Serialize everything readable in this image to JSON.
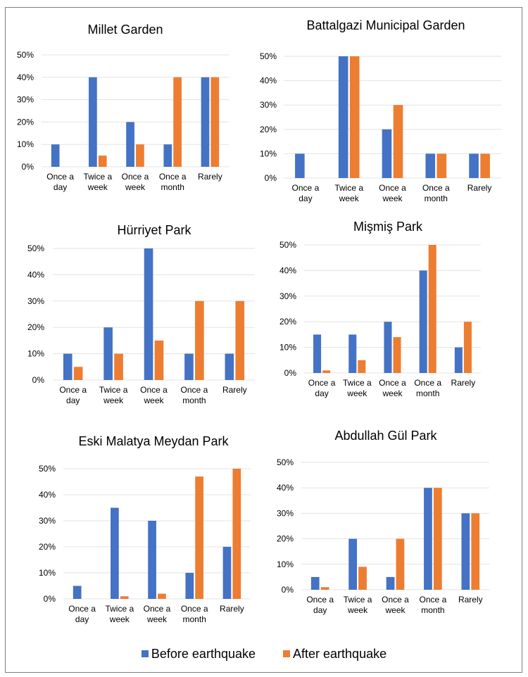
{
  "colors": {
    "before": "#4472c4",
    "after": "#ed7d31"
  },
  "legend": [
    {
      "label": "Before earthquake",
      "series": "before"
    },
    {
      "label": "After earthquake",
      "series": "after"
    }
  ],
  "chart_data": [
    {
      "type": "bar",
      "title": "Millet Garden",
      "categories": [
        "Once a day",
        "Twice a week",
        "Once a week",
        "Once a month",
        "Rarely"
      ],
      "series": [
        {
          "name": "Before earthquake",
          "values": [
            10,
            40,
            20,
            10,
            40
          ]
        },
        {
          "name": "After earthquake",
          "values": [
            0,
            5,
            10,
            40,
            40
          ]
        }
      ],
      "xlabel": "",
      "ylabel": "",
      "ylim": [
        0,
        50
      ],
      "yticks": [
        "0%",
        "10%",
        "20%",
        "30%",
        "40%",
        "50%"
      ],
      "grid": true
    },
    {
      "type": "bar",
      "title": "Battalgazi Municipal Garden",
      "categories": [
        "Once a day",
        "Twice a week",
        "Once a week",
        "Once a month",
        "Rarely"
      ],
      "series": [
        {
          "name": "Before earthquake",
          "values": [
            10,
            50,
            20,
            10,
            10
          ]
        },
        {
          "name": "After earthquake",
          "values": [
            0,
            50,
            30,
            10,
            10
          ]
        }
      ],
      "xlabel": "",
      "ylabel": "",
      "ylim": [
        0,
        50
      ],
      "yticks": [
        "0%",
        "10%",
        "20%",
        "30%",
        "40%",
        "50%"
      ],
      "grid": true
    },
    {
      "type": "bar",
      "title": "Hürriyet Park",
      "categories": [
        "Once a day",
        "Twice a week",
        "Once a week",
        "Once a month",
        "Rarely"
      ],
      "series": [
        {
          "name": "Before earthquake",
          "values": [
            10,
            20,
            50,
            10,
            10
          ]
        },
        {
          "name": "After earthquake",
          "values": [
            5,
            10,
            15,
            30,
            30
          ]
        }
      ],
      "xlabel": "",
      "ylabel": "",
      "ylim": [
        0,
        50
      ],
      "yticks": [
        "0%",
        "10%",
        "20%",
        "30%",
        "40%",
        "50%"
      ],
      "grid": true
    },
    {
      "type": "bar",
      "title": "Mişmiş Park",
      "categories": [
        "Once a day",
        "Twice a week",
        "Once a week",
        "Once a month",
        "Rarely"
      ],
      "series": [
        {
          "name": "Before earthquake",
          "values": [
            15,
            15,
            20,
            40,
            10
          ]
        },
        {
          "name": "After earthquake",
          "values": [
            1,
            5,
            14,
            50,
            20
          ]
        }
      ],
      "xlabel": "",
      "ylabel": "",
      "ylim": [
        0,
        50
      ],
      "yticks": [
        "0%",
        "10%",
        "20%",
        "30%",
        "40%",
        "50%"
      ],
      "grid": true
    },
    {
      "type": "bar",
      "title": "Eski Malatya Meydan Park",
      "categories": [
        "Once a day",
        "Twice a week",
        "Once a week",
        "Once a month",
        "Rarely"
      ],
      "series": [
        {
          "name": "Before earthquake",
          "values": [
            5,
            35,
            30,
            10,
            20
          ]
        },
        {
          "name": "After earthquake",
          "values": [
            0,
            1,
            2,
            47,
            50
          ]
        }
      ],
      "xlabel": "",
      "ylabel": "",
      "ylim": [
        0,
        50
      ],
      "yticks": [
        "0%",
        "10%",
        "20%",
        "30%",
        "40%",
        "50%"
      ],
      "grid": true
    },
    {
      "type": "bar",
      "title": "Abdullah Gül Park",
      "categories": [
        "Once a day",
        "Twice a week",
        "Once a week",
        "Once a month",
        "Rarely"
      ],
      "series": [
        {
          "name": "Before earthquake",
          "values": [
            5,
            20,
            5,
            40,
            30
          ]
        },
        {
          "name": "After earthquake",
          "values": [
            1,
            9,
            20,
            40,
            30
          ]
        }
      ],
      "xlabel": "",
      "ylabel": "",
      "ylim": [
        0,
        50
      ],
      "yticks": [
        "0%",
        "10%",
        "20%",
        "30%",
        "40%",
        "50%"
      ],
      "grid": true
    }
  ]
}
